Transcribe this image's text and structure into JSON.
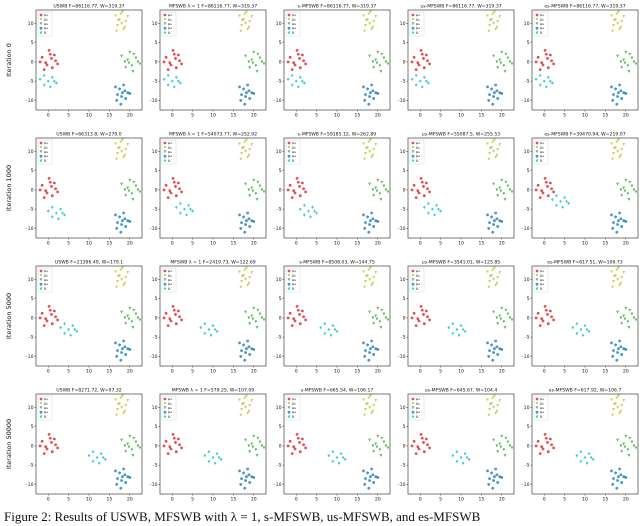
{
  "figure": {
    "row_labels": [
      "Iteration 0",
      "Iteration 1000",
      "Iteration 5000",
      "Iteration 50000"
    ],
    "xlim": [
      -3,
      23
    ],
    "ylim": [
      -12.5,
      13.5
    ],
    "xticks": [
      0,
      5,
      10,
      15,
      20
    ],
    "yticks": [
      -10,
      -5,
      0,
      5,
      10
    ],
    "measures": [
      {
        "name": "μ₁",
        "color": "#d62728",
        "marker": "circle",
        "x": [
          -1.5,
          0.5,
          1.8,
          -0.3,
          1,
          -2,
          0.2,
          2.3,
          -1,
          0.8,
          1.5,
          -0.6
        ],
        "y": [
          1.2,
          2,
          0.3,
          -0.8,
          -1.5,
          0,
          3,
          -0.5,
          -2,
          0.9,
          1.8,
          -0.2
        ]
      },
      {
        "name": "μ₂",
        "color": "#bcbd22",
        "marker": "triangle",
        "x": [
          16.5,
          17.5,
          18.2,
          19,
          17,
          18.8,
          16.8,
          18,
          19.5,
          17.8,
          18.5,
          17.2
        ],
        "y": [
          12,
          11,
          13,
          10.5,
          9.5,
          9,
          8,
          10,
          11.8,
          12.5,
          8.5,
          10.8
        ]
      },
      {
        "name": "μ₃",
        "color": "#2ca02c",
        "marker": "triangle",
        "x": [
          18,
          19.5,
          21,
          22,
          20.5,
          19,
          21.5,
          20,
          18.8,
          22.5,
          20.8,
          19.8
        ],
        "y": [
          1.5,
          0.5,
          2,
          0,
          -1,
          -1.5,
          1,
          2.5,
          0,
          -0.5,
          -2.5,
          -0.3
        ]
      },
      {
        "name": "μ₄",
        "color": "#1f77b4",
        "marker": "circle",
        "x": [
          16.5,
          17.5,
          18.5,
          19.5,
          17,
          18,
          19,
          16.8,
          18.8,
          17.8,
          20,
          18.2
        ],
        "y": [
          -6.5,
          -7,
          -6,
          -8,
          -8.5,
          -9,
          -9.5,
          -10,
          -7.5,
          -11,
          -8.2,
          -8
        ]
      }
    ],
    "barycenter": {
      "name": "μ",
      "color": "#17becf",
      "marker": "diamond"
    },
    "panels": [
      [
        {
          "title": "USWB F=86116.77, W=319.37",
          "x": [
            -2,
            -1,
            0,
            1,
            2,
            -1,
            0.5,
            1.5
          ],
          "y": [
            -4.5,
            -6,
            -5,
            -4,
            -5.5,
            -3.5,
            -6.5,
            -5
          ]
        },
        {
          "title": "MFSWB λ = 1 F=86116.77, W=319.37",
          "x": [
            -2,
            -1,
            0,
            1,
            2,
            -1,
            0.5,
            1.5
          ],
          "y": [
            -4.5,
            -6,
            -5,
            -4,
            -5.5,
            -3.5,
            -6.5,
            -5
          ]
        },
        {
          "title": "s-MFSWB F=86116.77, W=319.37",
          "x": [
            -2,
            -1,
            0,
            1,
            2,
            -1,
            0.5,
            1.5
          ],
          "y": [
            -4.5,
            -6,
            -5,
            -4,
            -5.5,
            -3.5,
            -6.5,
            -5
          ]
        },
        {
          "title": "us-MFSWB F=86116.77, W=319.37",
          "x": [
            -2,
            -1,
            0,
            1,
            2,
            -1,
            0.5,
            1.5
          ],
          "y": [
            -4.5,
            -6,
            -5,
            -4,
            -5.5,
            -3.5,
            -6.5,
            -5
          ]
        },
        {
          "title": "es-MFSWB F=86116.77, W=319.37",
          "x": [
            -2,
            -1,
            0,
            1,
            2,
            -1,
            0.5,
            1.5
          ],
          "y": [
            -4.5,
            -6,
            -5,
            -4,
            -5.5,
            -3.5,
            -6.5,
            -5
          ]
        }
      ],
      [
        {
          "title": "USWB F=66313.8, W=279.0",
          "x": [
            0,
            1,
            2,
            3,
            4,
            1,
            2.5,
            3.5
          ],
          "y": [
            -5.5,
            -7,
            -6,
            -5,
            -6.5,
            -4.5,
            -7.5,
            -6
          ]
        },
        {
          "title": "MFSWB λ = 1 F=54073.77, W=252.92",
          "x": [
            1,
            2,
            3,
            4,
            5,
            2,
            3.5,
            4.5
          ],
          "y": [
            -4.5,
            -6,
            -5,
            -4,
            -5.5,
            -3.5,
            -6.5,
            -5
          ]
        },
        {
          "title": "s-MFSWB F=59185.12, W=262.89",
          "x": [
            1,
            2,
            3,
            4,
            5,
            2,
            3.5,
            4.5
          ],
          "y": [
            -5,
            -6.5,
            -5.5,
            -4.5,
            -6,
            -4,
            -7,
            -5.5
          ]
        },
        {
          "title": "us-MFSWB F=55087.5, W=255.53",
          "x": [
            1,
            2,
            3,
            4,
            5,
            2,
            3.5,
            4.5
          ],
          "y": [
            -4.5,
            -6,
            -5,
            -4,
            -5.5,
            -3.5,
            -6.5,
            -5
          ]
        },
        {
          "title": "es-MFSWB F=39470.94, W=219.07",
          "x": [
            2,
            3,
            4,
            5,
            6,
            3,
            4.5,
            5.5
          ],
          "y": [
            -2.5,
            -4,
            -3,
            -2,
            -3.5,
            -1.5,
            -4.5,
            -3
          ]
        }
      ],
      [
        {
          "title": "USWB F=21396.49, W=179.1",
          "x": [
            3,
            4,
            5,
            6,
            7,
            4,
            5.5,
            6.5
          ],
          "y": [
            -2.5,
            -4,
            -3,
            -2,
            -3.5,
            -1.5,
            -4.5,
            -3
          ]
        },
        {
          "title": "MFSWB λ = 1 F=2419.73, W=122.69",
          "x": [
            7,
            8,
            9,
            10,
            11,
            8,
            9.5,
            10.5
          ],
          "y": [
            -2.5,
            -4,
            -3,
            -2,
            -3.5,
            -1.5,
            -4.5,
            -3
          ]
        },
        {
          "title": "s-MFSWB F=8508.03, W=144.75",
          "x": [
            6,
            7,
            8,
            9,
            10,
            7,
            8.5,
            9.5
          ],
          "y": [
            -2.5,
            -4,
            -3,
            -2,
            -3.5,
            -1.5,
            -4.5,
            -3
          ]
        },
        {
          "title": "us-MFSWB F=3541.01, W=125.85",
          "x": [
            7,
            8,
            9,
            10,
            11,
            8,
            9.5,
            10.5
          ],
          "y": [
            -2.5,
            -4,
            -3,
            -2,
            -3.5,
            -1.5,
            -4.5,
            -3
          ]
        },
        {
          "title": "es-MFSWB F=617.51, W=106.73",
          "x": [
            7,
            8,
            9,
            10,
            11,
            8,
            9.5,
            10.5
          ],
          "y": [
            -2.5,
            -4,
            -3,
            -2,
            -3.5,
            -1.5,
            -4.5,
            -3
          ]
        }
      ],
      [
        {
          "title": "USWB F=8271.72, W=97.32",
          "x": [
            10,
            11,
            12,
            13,
            14,
            11,
            12.5,
            13.5
          ],
          "y": [
            -2.5,
            -4,
            -3,
            -2,
            -3.5,
            -1.5,
            -4.5,
            -3
          ]
        },
        {
          "title": "MFSWB λ = 1 F=579.25, W=107.09",
          "x": [
            8,
            9,
            10,
            11,
            12,
            9,
            10.5,
            11.5
          ],
          "y": [
            -2.5,
            -4,
            -3,
            -2,
            -3.5,
            -1.5,
            -4.5,
            -3
          ]
        },
        {
          "title": "s-MFSWB F=665.54, W=106.17",
          "x": [
            8,
            9,
            10,
            11,
            12,
            9,
            10.5,
            11.5
          ],
          "y": [
            -2.5,
            -4,
            -3,
            -2,
            -3.5,
            -1.5,
            -4.5,
            -3
          ]
        },
        {
          "title": "us-MFSWB F=645.67, W=104.4",
          "x": [
            8,
            9,
            10,
            11,
            12,
            9,
            10.5,
            11.5
          ],
          "y": [
            -2.5,
            -4,
            -3,
            -2,
            -3.5,
            -1.5,
            -4.5,
            -3
          ]
        },
        {
          "title": "es-MFSWB F=617.92, W=106.7",
          "x": [
            8,
            9,
            10,
            11,
            12,
            9,
            10.5,
            11.5
          ],
          "y": [
            -2.5,
            -4,
            -3,
            -2,
            -3.5,
            -1.5,
            -4.5,
            -3
          ]
        }
      ]
    ],
    "caption": "Figure 2: Results of USWB, MFSWB with λ = 1, s-MFSWB, us-MFSWB, and es-MFSWB"
  }
}
